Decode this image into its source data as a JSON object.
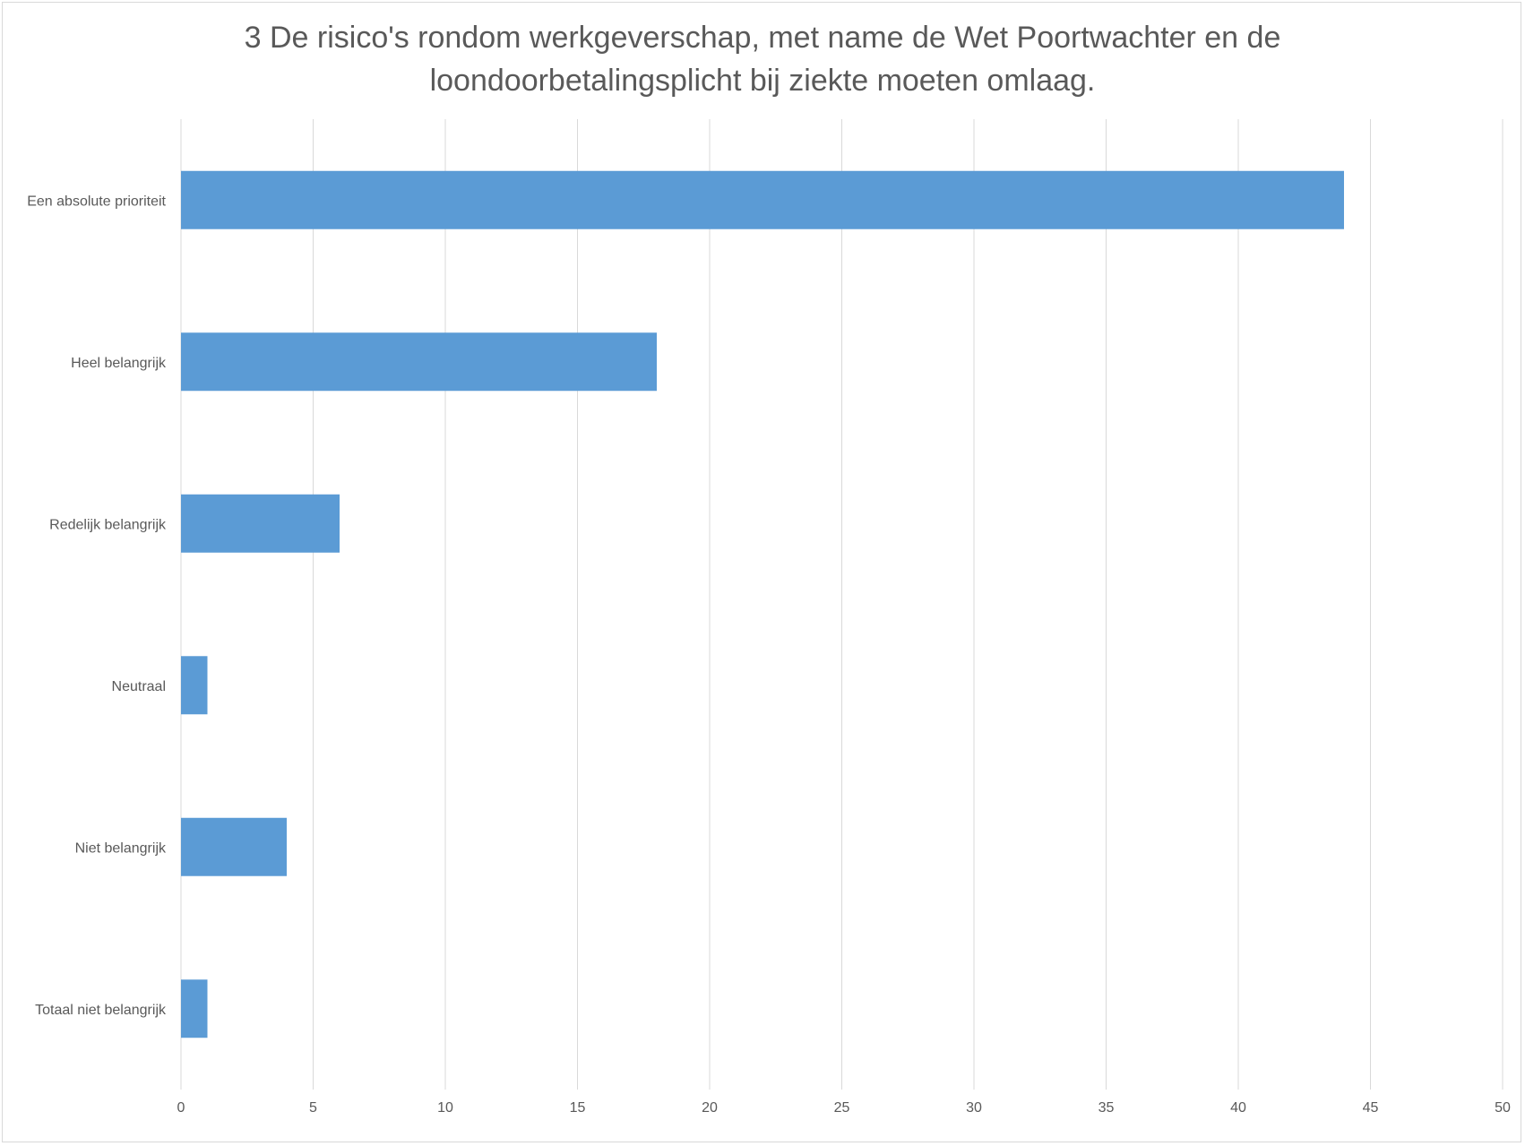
{
  "chart_data": {
    "type": "bar",
    "orientation": "horizontal",
    "title_lines": [
      "3 De risico's rondom werkgeverschap, met name de Wet Poortwachter en de",
      "loondoorbetalingsplicht bij ziekte  moeten omlaag."
    ],
    "categories": [
      "Een absolute prioriteit",
      "Heel belangrijk",
      "Redelijk belangrijk",
      "Neutraal",
      "Niet belangrijk",
      "Totaal niet belangrijk"
    ],
    "values": [
      44,
      18,
      6,
      1,
      4,
      1
    ],
    "xlim": [
      0,
      50
    ],
    "x_ticks": [
      0,
      5,
      10,
      15,
      20,
      25,
      30,
      35,
      40,
      45,
      50
    ],
    "grid": "vertical",
    "legend": "none",
    "bar_color": "#5b9bd5",
    "grid_color": "#d9d9d9"
  }
}
